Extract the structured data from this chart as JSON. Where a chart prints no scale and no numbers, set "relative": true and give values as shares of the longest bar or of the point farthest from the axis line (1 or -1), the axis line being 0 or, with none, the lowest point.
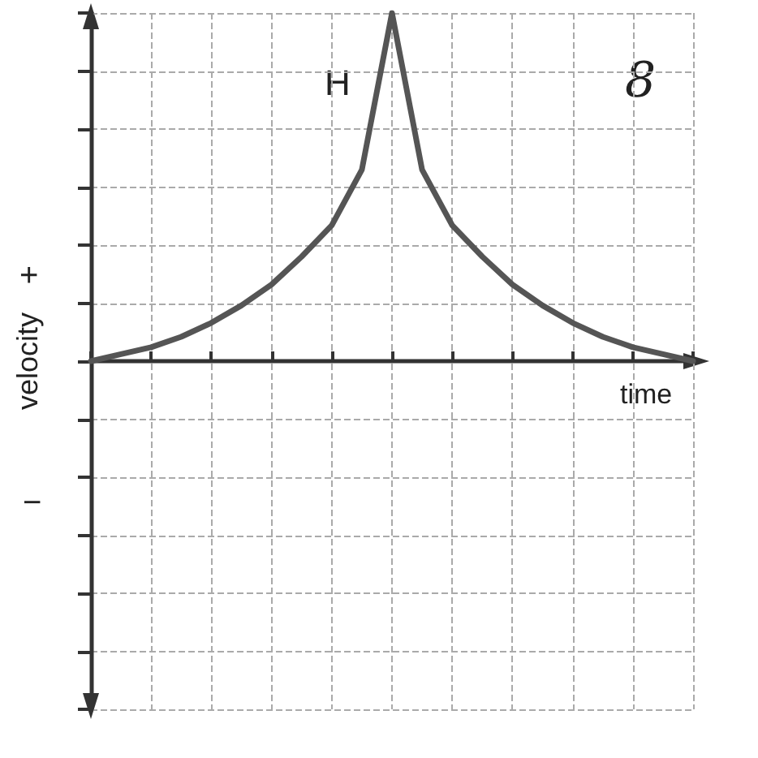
{
  "chart_data": {
    "type": "line",
    "relative": true,
    "xlabel": "time",
    "ylabel": "velocity",
    "annotations": [
      "H",
      "+",
      "−",
      "8"
    ],
    "categories": [
      null,
      null,
      null,
      null,
      null,
      null,
      null,
      null,
      null,
      null,
      null,
      null,
      null,
      null,
      null,
      null,
      null,
      null,
      null,
      null,
      null
    ],
    "series": [
      {
        "color": "#555555",
        "values": [
          0,
          0.02,
          0.04,
          0.07,
          0.11,
          0.16,
          0.22,
          0.3,
          0.39,
          0.55,
          1,
          0.55,
          0.39,
          0.3,
          0.22,
          0.16,
          0.11,
          0.07,
          0.04,
          0.02,
          0
        ]
      }
    ],
    "grid": true,
    "marker": "none",
    "line_style": "solid"
  }
}
